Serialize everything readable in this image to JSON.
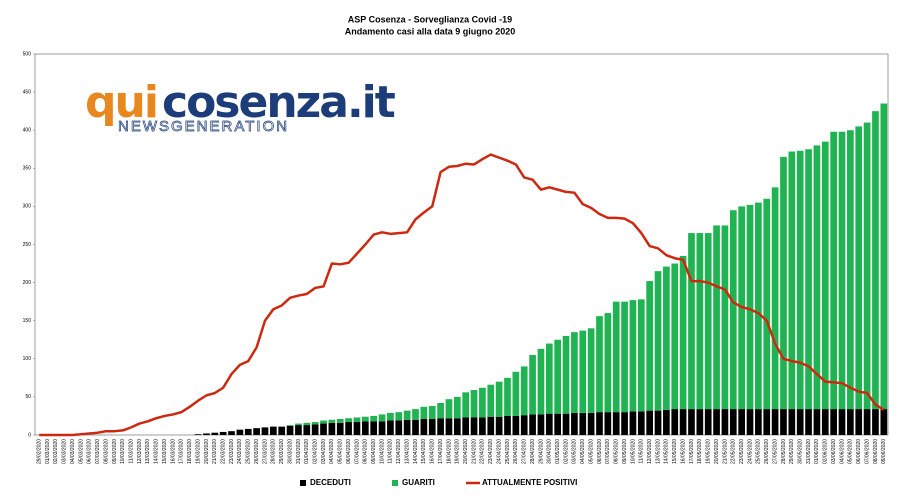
{
  "chart_data": {
    "type": "stacked_bar_line",
    "title": "ASP Cosenza - Sorveglianza Covid -19",
    "subtitle": "Andamento casi alla data 9 giugno  2020",
    "logo": {
      "brand": [
        "qui",
        "cosenza.it"
      ],
      "tagline": "NEWSGENERATION"
    },
    "categories": [
      "29/02/2020",
      "01/03/2020",
      "02/03/2020",
      "03/03/2020",
      "04/03/2020",
      "05/03/2020",
      "06/03/2020",
      "07/03/2020",
      "08/03/2020",
      "09/03/2020",
      "10/03/2020",
      "11/03/2020",
      "12/03/2020",
      "13/03/2020",
      "14/03/2020",
      "15/03/2020",
      "16/03/2020",
      "17/03/2020",
      "18/03/2020",
      "19/03/2020",
      "20/03/2020",
      "21/03/2020",
      "22/03/2020",
      "23/03/2020",
      "24/03/2020",
      "25/03/2020",
      "26/03/2020",
      "27/03/2020",
      "28/03/2020",
      "29/03/2020",
      "30/03/2020",
      "31/03/2020",
      "01/04/2020",
      "02/04/2020",
      "03/04/2020",
      "04/04/2020",
      "05/04/2020",
      "06/04/2020",
      "07/04/2020",
      "08/04/2020",
      "09/04/2020",
      "10/04/2020",
      "11/04/2020",
      "12/04/2020",
      "13/04/2020",
      "14/04/2020",
      "15/04/2020",
      "16/04/2020",
      "17/04/2020",
      "18/04/2020",
      "19/04/2020",
      "20/04/2020",
      "21/04/2020",
      "22/04/2020",
      "23/04/2020",
      "24/04/2020",
      "25/04/2020",
      "26/04/2020",
      "27/04/2020",
      "28/04/2020",
      "29/04/2020",
      "30/04/2020",
      "01/05/2020",
      "02/05/2020",
      "03/05/2020",
      "04/05/2020",
      "05/05/2020",
      "06/05/2020",
      "07/05/2020",
      "08/05/2020",
      "09/05/2020",
      "10/05/2020",
      "11/05/2020",
      "12/05/2020",
      "13/05/2020",
      "14/05/2020",
      "15/05/2020",
      "16/05/2020",
      "17/05/2020",
      "18/05/2020",
      "19/05/2020",
      "20/05/2020",
      "21/05/2020",
      "22/05/2020",
      "23/05/2020",
      "24/05/2020",
      "25/05/2020",
      "26/05/2020",
      "27/05/2020",
      "28/05/2020",
      "29/05/2020",
      "30/05/2020",
      "31/05/2020",
      "01/06/2020",
      "02/06/2020",
      "03/06/2020",
      "04/06/2020",
      "05/06/2020",
      "06/06/2020",
      "07/06/2020",
      "08/06/2020",
      "09/06/2020"
    ],
    "series": [
      {
        "name": "DECEDUTI",
        "color": "#000000",
        "kind": "bar",
        "values": [
          0,
          0,
          0,
          0,
          0,
          0,
          0,
          0,
          0,
          0,
          0,
          0,
          0,
          0,
          0,
          0,
          0,
          0,
          0,
          1,
          2,
          3,
          4,
          5,
          7,
          8,
          9,
          10,
          11,
          11,
          12,
          13,
          13,
          14,
          15,
          16,
          16,
          17,
          17,
          18,
          18,
          18,
          19,
          19,
          20,
          20,
          21,
          21,
          22,
          22,
          22,
          23,
          23,
          23,
          24,
          24,
          25,
          25,
          26,
          27,
          27,
          28,
          28,
          28,
          29,
          29,
          29,
          30,
          30,
          30,
          30,
          31,
          31,
          32,
          32,
          33,
          34,
          34,
          34,
          34,
          34,
          34,
          34,
          34,
          34,
          34,
          34,
          34,
          34,
          34,
          34,
          34,
          34,
          34,
          34,
          34,
          34,
          34,
          34,
          34,
          34,
          34
        ]
      },
      {
        "name": "GUARITI",
        "color": "#1fb451",
        "kind": "bar",
        "values": [
          0,
          0,
          0,
          0,
          0,
          0,
          0,
          0,
          0,
          0,
          0,
          0,
          0,
          0,
          0,
          0,
          0,
          0,
          0,
          0,
          0,
          0,
          0,
          0,
          0,
          0,
          0,
          0,
          0,
          0,
          1,
          2,
          3,
          3,
          4,
          4,
          5,
          5,
          6,
          6,
          7,
          9,
          10,
          11,
          12,
          14,
          16,
          17,
          20,
          25,
          28,
          33,
          36,
          39,
          42,
          46,
          50,
          58,
          64,
          78,
          86,
          92,
          97,
          102,
          106,
          108,
          111,
          126,
          130,
          145,
          145,
          146,
          147,
          170,
          183,
          188,
          191,
          201,
          231,
          231,
          231,
          241,
          241,
          261,
          266,
          268,
          271,
          276,
          291,
          331,
          338,
          339,
          341,
          346,
          351,
          364,
          364,
          366,
          371,
          376,
          391,
          401
        ]
      },
      {
        "name": "ATTUALMENTE POSITIVI",
        "color": "#cc2a10",
        "kind": "line",
        "values": [
          0,
          0,
          0,
          0,
          0,
          1,
          2,
          3,
          5,
          5,
          6,
          10,
          15,
          18,
          22,
          25,
          27,
          30,
          37,
          45,
          52,
          55,
          62,
          80,
          92,
          97,
          115,
          150,
          165,
          170,
          180,
          183,
          185,
          193,
          195,
          225,
          224,
          226,
          238,
          250,
          263,
          266,
          264,
          265,
          266,
          283,
          292,
          300,
          345,
          352,
          353,
          356,
          355,
          362,
          368,
          364,
          360,
          355,
          338,
          335,
          322,
          325,
          322,
          319,
          318,
          303,
          298,
          290,
          285,
          285,
          284,
          278,
          265,
          248,
          245,
          236,
          232,
          230,
          202,
          202,
          200,
          195,
          191,
          174,
          168,
          165,
          160,
          150,
          120,
          100,
          97,
          95,
          90,
          80,
          70,
          69,
          68,
          62,
          57,
          55,
          40,
          33
        ]
      }
    ],
    "ylim": [
      0,
      500
    ],
    "yticks": [
      0,
      50,
      100,
      150,
      200,
      250,
      300,
      350,
      400,
      450,
      500
    ],
    "grid": false,
    "legend": "bottom"
  }
}
